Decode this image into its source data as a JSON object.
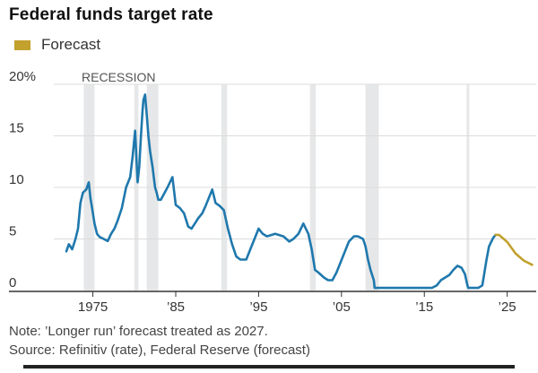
{
  "header": {
    "title": "Federal funds target rate",
    "legend_label": "Forecast"
  },
  "footer": {
    "note": "Note: ’Longer run’ forecast treated as 2027.",
    "source": "Source: Refinitiv (rate), Federal Reserve (forecast)"
  },
  "colors": {
    "rate": "#1f78ad",
    "forecast": "#c2a12d",
    "recession": "#e6e7e8",
    "grid": "#dcdcdc",
    "axis": "#333333"
  },
  "chart_data": {
    "type": "line",
    "title": "Federal funds target rate",
    "xlabel": "",
    "ylabel": "",
    "xlim": [
      1970.5,
      2028.5
    ],
    "ylim": [
      0,
      20
    ],
    "y_ticks": [
      0,
      5,
      10,
      15,
      20
    ],
    "y_tick_labels": [
      "0",
      "5",
      "10",
      "15",
      "20%"
    ],
    "x_ticks": [
      1975,
      1985,
      1995,
      2005,
      2015,
      2025
    ],
    "x_tick_labels": [
      "1975",
      "’85",
      "’95",
      "’05",
      "’15",
      "’25"
    ],
    "grid": true,
    "recession_label": "RECESSION",
    "recessions": [
      [
        1973.9,
        1975.2
      ],
      [
        1980.0,
        1980.5
      ],
      [
        1981.5,
        1982.9
      ],
      [
        1990.5,
        1991.2
      ],
      [
        2001.2,
        2001.9
      ],
      [
        2007.9,
        2009.5
      ],
      [
        2020.1,
        2020.4
      ]
    ],
    "series": [
      {
        "name": "Federal funds target rate",
        "x": [
          1971.8,
          1972.1,
          1972.5,
          1972.9,
          1973.2,
          1973.5,
          1973.8,
          1974.2,
          1974.5,
          1974.7,
          1974.9,
          1975.2,
          1975.5,
          1975.8,
          1976.3,
          1976.8,
          1977.2,
          1977.6,
          1978.0,
          1978.5,
          1979.0,
          1979.5,
          1979.8,
          1980.1,
          1980.3,
          1980.4,
          1980.6,
          1980.8,
          1981.0,
          1981.1,
          1981.3,
          1981.5,
          1981.7,
          1981.9,
          1982.2,
          1982.5,
          1982.7,
          1982.9,
          1983.2,
          1983.6,
          1984.0,
          1984.6,
          1985.0,
          1985.5,
          1986.0,
          1986.5,
          1986.9,
          1987.3,
          1987.7,
          1988.2,
          1988.6,
          1989.0,
          1989.4,
          1989.8,
          1990.3,
          1990.8,
          1991.3,
          1991.8,
          1992.3,
          1992.8,
          1993.5,
          1994.0,
          1994.5,
          1995.0,
          1995.5,
          1996.0,
          1997.0,
          1998.0,
          1998.7,
          1999.2,
          1999.8,
          2000.4,
          2001.0,
          2001.4,
          2001.8,
          2002.2,
          2002.9,
          2003.4,
          2003.9,
          2004.4,
          2004.9,
          2005.4,
          2005.9,
          2006.5,
          2007.0,
          2007.6,
          2007.9,
          2008.2,
          2008.5,
          2008.9,
          2009.0,
          2011.0,
          2015.9,
          2016.5,
          2017.0,
          2017.5,
          2018.0,
          2018.5,
          2019.0,
          2019.5,
          2019.9,
          2020.2,
          2020.3,
          2021.5,
          2022.0,
          2022.2,
          2022.5,
          2022.8,
          2023.0,
          2023.3,
          2023.6
        ],
        "values": [
          3.8,
          4.5,
          4.0,
          5.0,
          6.0,
          8.5,
          9.5,
          9.8,
          10.5,
          9.0,
          8.0,
          6.5,
          5.5,
          5.2,
          5.0,
          4.8,
          5.5,
          6.0,
          6.8,
          8.0,
          10.0,
          11.0,
          13.0,
          15.5,
          12.0,
          10.5,
          12.0,
          15.0,
          17.5,
          18.5,
          19.0,
          17.0,
          15.0,
          13.5,
          12.0,
          10.0,
          9.5,
          8.8,
          8.8,
          9.4,
          10.0,
          11.0,
          8.3,
          8.0,
          7.5,
          6.2,
          6.0,
          6.5,
          7.0,
          7.5,
          8.2,
          9.0,
          9.8,
          8.5,
          8.2,
          7.8,
          6.0,
          4.5,
          3.3,
          3.0,
          3.0,
          4.0,
          5.0,
          6.0,
          5.5,
          5.25,
          5.5,
          5.25,
          4.75,
          5.0,
          5.5,
          6.5,
          5.5,
          4.0,
          2.0,
          1.75,
          1.25,
          1.0,
          1.0,
          1.75,
          2.75,
          3.75,
          4.75,
          5.25,
          5.25,
          5.0,
          4.3,
          3.0,
          2.0,
          1.0,
          0.25,
          0.25,
          0.25,
          0.5,
          1.0,
          1.25,
          1.5,
          2.0,
          2.4,
          2.2,
          1.6,
          0.5,
          0.25,
          0.25,
          0.5,
          1.5,
          3.0,
          4.25,
          4.6,
          5.1,
          5.4
        ]
      },
      {
        "name": "Forecast",
        "x": [
          2023.6,
          2024.0,
          2025.0,
          2026.0,
          2027.0,
          2028.0
        ],
        "values": [
          5.4,
          5.4,
          4.7,
          3.6,
          2.9,
          2.5
        ]
      }
    ]
  }
}
